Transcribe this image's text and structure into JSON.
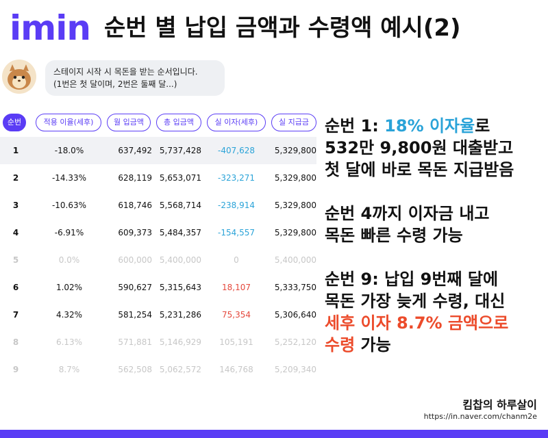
{
  "header": {
    "logo": "imin",
    "title": "순번 별 납입 금액과 수령액 예시(2)"
  },
  "bubble": {
    "line1": "스테이지 시작 시 목돈을 받는 순서입니다.",
    "line2": "(1번은 첫 달이며, 2번은 둘째 달...)"
  },
  "table": {
    "headers": [
      "순번",
      "적용 이율(세후)",
      "월 입금액",
      "총 입금액",
      "실 이자(세후)",
      "실 지급금"
    ],
    "rows": [
      {
        "no": "1",
        "rate": "-18.0%",
        "monthly": "637,492",
        "total": "5,737,428",
        "interest": "-407,628",
        "payout": "5,329,800"
      },
      {
        "no": "2",
        "rate": "-14.33%",
        "monthly": "628,119",
        "total": "5,653,071",
        "interest": "-323,271",
        "payout": "5,329,800"
      },
      {
        "no": "3",
        "rate": "-10.63%",
        "monthly": "618,746",
        "total": "5,568,714",
        "interest": "-238,914",
        "payout": "5,329,800"
      },
      {
        "no": "4",
        "rate": "-6.91%",
        "monthly": "609,373",
        "total": "5,484,357",
        "interest": "-154,557",
        "payout": "5,329,800"
      },
      {
        "no": "5",
        "rate": "0.0%",
        "monthly": "600,000",
        "total": "5,400,000",
        "interest": "0",
        "payout": "5,400,000"
      },
      {
        "no": "6",
        "rate": "1.02%",
        "monthly": "590,627",
        "total": "5,315,643",
        "interest": "18,107",
        "payout": "5,333,750"
      },
      {
        "no": "7",
        "rate": "4.32%",
        "monthly": "581,254",
        "total": "5,231,286",
        "interest": "75,354",
        "payout": "5,306,640"
      },
      {
        "no": "8",
        "rate": "6.13%",
        "monthly": "571,881",
        "total": "5,146,929",
        "interest": "105,191",
        "payout": "5,252,120"
      },
      {
        "no": "9",
        "rate": "8.7%",
        "monthly": "562,508",
        "total": "5,062,572",
        "interest": "146,768",
        "payout": "5,209,340"
      }
    ]
  },
  "notes": {
    "n1_a": "순번 1: ",
    "n1_b": "18% 이자율",
    "n1_c": "로",
    "n1_line2": "532만 9,800원 대출받고",
    "n1_line3": "첫 달에 바로 목돈 지급받음",
    "n2_line1": "순번 4까지 이자금 내고",
    "n2_line2": "목돈 빠른 수령 가능",
    "n3_line1": "순번 9: 납입 9번째 달에",
    "n3_line2": "목돈 가장 늦게 수령, 대신",
    "n3_line3": "세후 이자 8.7% 금액으로",
    "n3_line4_a": "수령",
    "n3_line4_b": " 가능"
  },
  "footer": {
    "brand": "킴찹의 하루살이",
    "url": "https://in.naver.com/chanm2e"
  },
  "colors": {
    "accent": "#5a3cf5",
    "negative_interest": "#2aa3d8",
    "positive_interest": "#e5483c",
    "highlight_red": "#ec4b2b"
  }
}
